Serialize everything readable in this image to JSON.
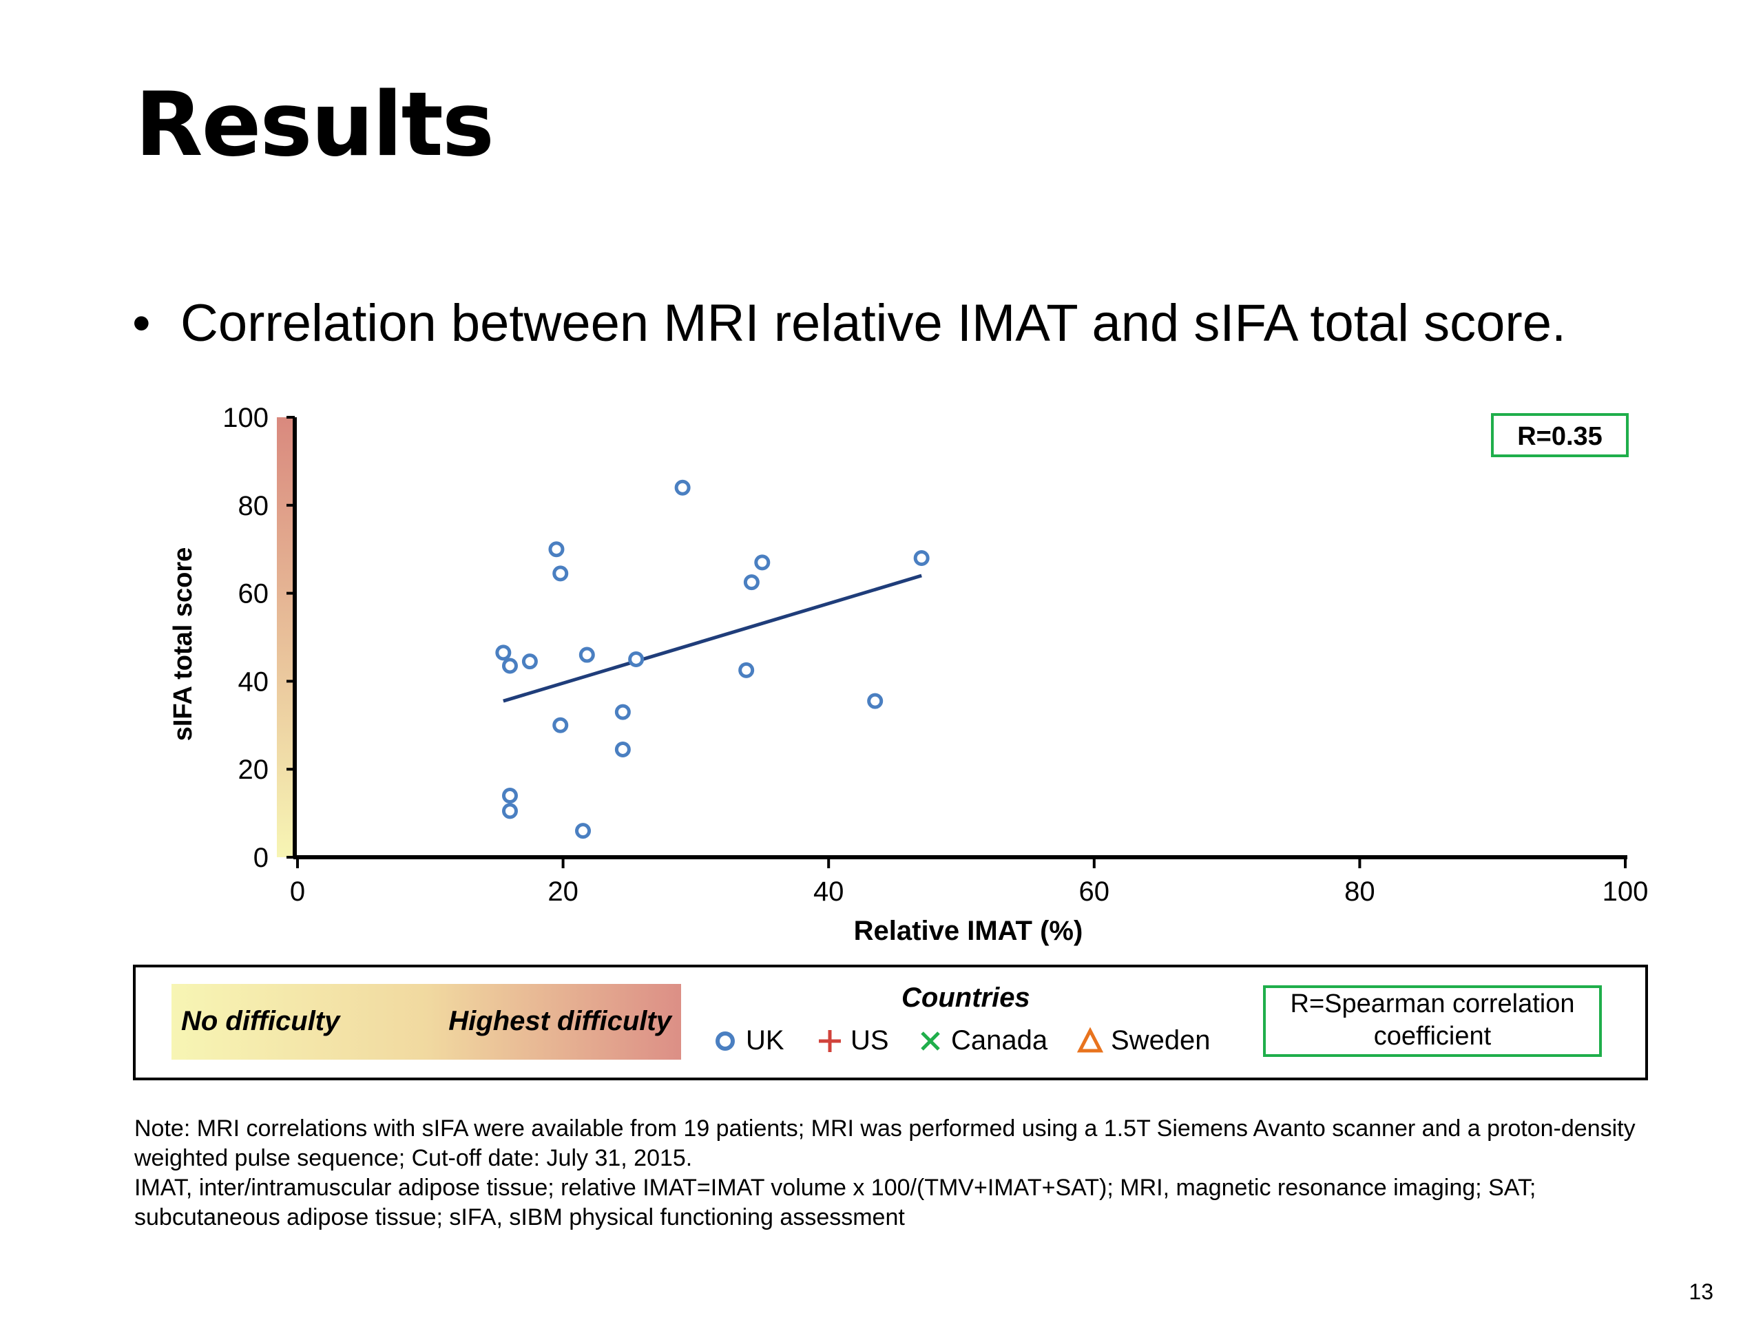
{
  "title": "Results",
  "bullet": "Correlation between MRI relative IMAT and sIFA total score.",
  "chart_data": {
    "type": "scatter",
    "xlabel": "Relative IMAT (%)",
    "ylabel": "sIFA  total score",
    "xlim": [
      0,
      100
    ],
    "ylim": [
      0,
      100
    ],
    "xticks": [
      "0",
      "20",
      "40",
      "60",
      "80",
      "100"
    ],
    "yticks": [
      "0",
      "20",
      "40",
      "60",
      "80",
      "100"
    ],
    "grid": false,
    "annotation": "R=0.35",
    "series": [
      {
        "name": "UK",
        "marker": "circle",
        "color": "#4a7fc1",
        "points": [
          [
            15.5,
            46.5
          ],
          [
            16,
            43.5
          ],
          [
            17.5,
            44.5
          ],
          [
            16,
            14
          ],
          [
            16,
            10.5
          ],
          [
            19.5,
            70
          ],
          [
            19.8,
            64.5
          ],
          [
            19.8,
            30
          ],
          [
            21.5,
            6
          ],
          [
            21.8,
            46
          ],
          [
            24.5,
            33
          ],
          [
            24.5,
            24.5
          ],
          [
            25.5,
            45
          ],
          [
            29,
            84
          ],
          [
            33.8,
            42.5
          ],
          [
            34.2,
            62.5
          ],
          [
            35,
            67
          ],
          [
            43.5,
            35.5
          ],
          [
            47,
            68
          ]
        ]
      }
    ],
    "trendline": {
      "color": "#1f3d7a",
      "points": [
        [
          15.5,
          35.5
        ],
        [
          47,
          64
        ]
      ]
    },
    "y_gradient": {
      "bottom": "#f7f5b4",
      "top": "#d9897e"
    }
  },
  "legend": {
    "no_difficulty": "No difficulty",
    "highest_difficulty": "Highest difficulty",
    "countries_title": "Countries",
    "countries": [
      {
        "label": "UK",
        "symbol": "circle",
        "color": "#4a7fc1"
      },
      {
        "label": "US",
        "symbol": "plus",
        "color": "#d1433b"
      },
      {
        "label": "Canada",
        "symbol": "cross",
        "color": "#1fae4b"
      },
      {
        "label": "Sweden",
        "symbol": "triangle",
        "color": "#e8731e"
      }
    ],
    "spearman_line1": "R=Spearman correlation",
    "spearman_line2": "coefficient"
  },
  "note": {
    "line1": "Note: MRI correlations with sIFA were available from 19 patients; MRI was performed using a 1.5T Siemens Avanto scanner and a proton-density weighted pulse sequence; Cut-off date: July 31, 2015.",
    "line2": "IMAT, inter/intramuscular adipose tissue; relative IMAT=IMAT volume x 100/(TMV+IMAT+SAT); MRI, magnetic resonance imaging; SAT; subcutaneous adipose tissue; sIFA, sIBM physical functioning assessment"
  },
  "page_number": "13"
}
